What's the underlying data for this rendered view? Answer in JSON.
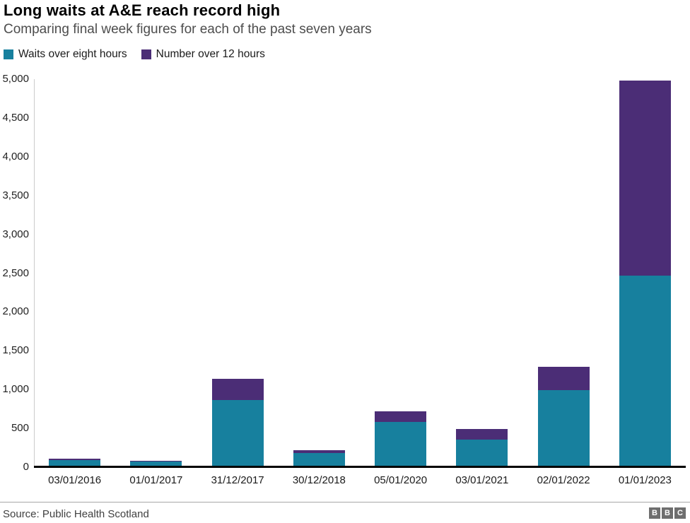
{
  "header": {
    "title": "Long waits at A&E reach record high",
    "subtitle": "Comparing final week figures for each of the past seven years"
  },
  "footer": {
    "source": "Source: Public Health Scotland",
    "logo_letters": [
      "B",
      "B",
      "C"
    ]
  },
  "colors": {
    "teal": "#17809e",
    "purple": "#4b2d76",
    "axis_line": "#000000",
    "y_axis_line": "#cccccc"
  },
  "chart_data": {
    "type": "bar",
    "stacked": true,
    "title": "Long waits at A&E reach record high",
    "subtitle": "Comparing final week figures for each of the past seven years",
    "categories": [
      "03/01/2016",
      "01/01/2017",
      "31/12/2017",
      "30/12/2018",
      "05/01/2020",
      "03/01/2021",
      "02/01/2022",
      "01/01/2023"
    ],
    "series": [
      {
        "name": "Waits over eight hours",
        "color": "#17809e",
        "values": [
          95,
          75,
          865,
          180,
          580,
          355,
          995,
          2470
        ]
      },
      {
        "name": "Number over 12 hours",
        "color": "#4b2d76",
        "values": [
          15,
          10,
          270,
          35,
          140,
          135,
          300,
          2510
        ]
      }
    ],
    "xlabel": "",
    "ylabel": "",
    "ylim": [
      0,
      5000
    ],
    "ytick_step": 500,
    "yticks": [
      "0",
      "500",
      "1,000",
      "1,500",
      "2,000",
      "2,500",
      "3,000",
      "3,500",
      "4,000",
      "4,500",
      "5,000"
    ],
    "grid": false,
    "legend_position": "top"
  }
}
